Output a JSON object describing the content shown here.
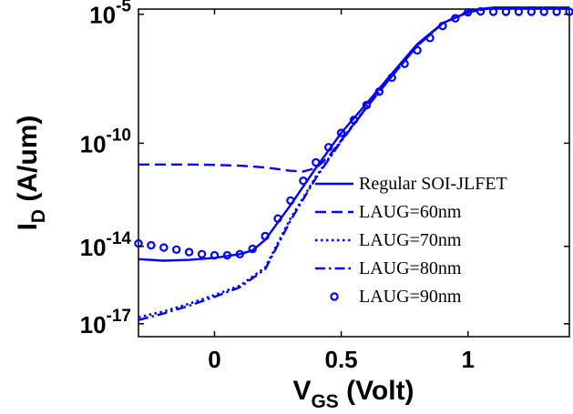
{
  "chart_data": {
    "type": "line",
    "title": "",
    "xlabel": {
      "main": "V",
      "sub": "GS",
      "unit": " (Volt)"
    },
    "ylabel": {
      "main": "I",
      "sub": "D",
      "unit": " (A/um)"
    },
    "xlim": [
      -0.3,
      1.4
    ],
    "ylim_log10": [
      -17.5,
      -4.8
    ],
    "x_scale": "linear",
    "y_scale": "log",
    "grid": false,
    "legend_position": "lower-right",
    "x_ticks": [
      {
        "value": 0,
        "label": "0"
      },
      {
        "value": 0.5,
        "label": "0.5"
      },
      {
        "value": 1,
        "label": "1"
      }
    ],
    "y_ticks": [
      {
        "value_log10": -5,
        "base": "10",
        "exp": "-5"
      },
      {
        "value_log10": -10,
        "base": "10",
        "exp": "-10"
      },
      {
        "value_log10": -14,
        "base": "10",
        "exp": "-14"
      },
      {
        "value_log10": -17,
        "base": "10",
        "exp": "-17"
      }
    ],
    "color": "#0000ff",
    "series": [
      {
        "name": "Regular SOI-JLFET",
        "style": "solid",
        "x": [
          -0.3,
          -0.2,
          -0.1,
          0,
          0.1,
          0.15,
          0.2,
          0.3,
          0.4,
          0.5,
          0.6,
          0.7,
          0.8,
          0.9,
          1.0,
          1.05,
          1.1,
          1.2,
          1.3,
          1.4
        ],
        "y": [
          "3.2e-15",
          "2.8e-15",
          "3.0e-15",
          "3.6e-15",
          "5.0e-15",
          "7.0e-15",
          "1.8e-14",
          "4.0e-13",
          "1.1e-11",
          "2.5e-10",
          "3.5e-9",
          "5.0e-8",
          "7.0e-7",
          "4.5e-6",
          "1.2e-5",
          "1.6e-5",
          "1.8e-5",
          "1.8e-5",
          "1.8e-5",
          "1.8e-5"
        ]
      },
      {
        "name": "LAUG=60nm",
        "style": "dashed",
        "x": [
          -0.3,
          -0.2,
          -0.1,
          0,
          0.1,
          0.2,
          0.3,
          0.35,
          0.4,
          0.45,
          0.5,
          0.6,
          0.7,
          0.8,
          0.9,
          1.0,
          1.05,
          1.1,
          1.2,
          1.4
        ],
        "y": [
          "1.5e-11",
          "1.5e-11",
          "1.5e-11",
          "1.45e-11",
          "1.35e-11",
          "1.15e-11",
          "8.5e-12",
          "8.0e-12",
          "1.1e-11",
          "3.0e-11",
          "1.3e-10",
          "2.5e-9",
          "4.0e-8",
          "6.0e-7",
          "4.5e-6",
          "1.3e-5",
          "1.6e-5",
          "1.8e-5",
          "1.8e-5",
          "1.8e-5"
        ]
      },
      {
        "name": "LAUG=70nm",
        "style": "dotted",
        "x": [
          -0.3,
          -0.2,
          -0.1,
          0,
          0.1,
          0.2,
          0.3,
          0.4,
          0.5,
          0.6,
          0.7,
          0.8,
          0.9,
          1.0,
          1.1,
          1.2,
          1.4
        ],
        "y": [
          "1.8e-17",
          "3.0e-17",
          "6.0e-17",
          "1.3e-16",
          "3.0e-16",
          "1.5e-15",
          "1.2e-13",
          "5.0e-12",
          "1.3e-10",
          "2.5e-9",
          "4.0e-8",
          "6.0e-7",
          "4.5e-6",
          "1.2e-5",
          "1.8e-5",
          "1.8e-5",
          "1.8e-5"
        ]
      },
      {
        "name": "LAUG=80nm",
        "style": "dashdot",
        "x": [
          -0.3,
          -0.2,
          -0.1,
          0,
          0.1,
          0.2,
          0.3,
          0.4,
          0.5,
          0.6,
          0.7,
          0.8,
          0.9,
          1.0,
          1.1,
          1.2,
          1.4
        ],
        "y": [
          "1.4e-17",
          "2.5e-17",
          "5.0e-17",
          "1.1e-16",
          "2.6e-16",
          "1.3e-15",
          "1.0e-13",
          "4.5e-12",
          "1.2e-10",
          "2.4e-9",
          "4.0e-8",
          "6.0e-7",
          "4.5e-6",
          "1.2e-5",
          "1.8e-5",
          "1.8e-5",
          "1.8e-5"
        ]
      },
      {
        "name": "LAUG=90nm",
        "style": "markers",
        "x": [
          -0.3,
          -0.25,
          -0.2,
          -0.15,
          -0.1,
          -0.05,
          0,
          0.05,
          0.1,
          0.15,
          0.2,
          0.25,
          0.3,
          0.35,
          0.4,
          0.45,
          0.5,
          0.55,
          0.6,
          0.65,
          0.7,
          0.75,
          0.8,
          0.85,
          0.9,
          0.95,
          1.0,
          1.05,
          1.1,
          1.15,
          1.2,
          1.25,
          1.3,
          1.35,
          1.4
        ],
        "y": [
          "1.3e-14",
          "1.1e-14",
          "9.0e-15",
          "7.5e-15",
          "6.0e-15",
          "5.0e-15",
          "4.5e-15",
          "4.5e-15",
          "5.0e-15",
          "8.0e-15",
          "2.5e-14",
          "1.2e-13",
          "6.0e-13",
          "3.5e-12",
          "1.8e-11",
          "7.0e-11",
          "2.5e-10",
          "8.0e-10",
          "3.0e-9",
          "1.0e-8",
          "3.5e-8",
          "1.2e-7",
          "4.0e-7",
          "1.2e-6",
          "3.5e-6",
          "7.0e-6",
          "1.2e-5",
          "1.3e-5",
          "1.25e-5",
          "1.25e-5",
          "1.25e-5",
          "1.25e-5",
          "1.25e-5",
          "1.25e-5",
          "1.25e-5"
        ]
      }
    ]
  }
}
